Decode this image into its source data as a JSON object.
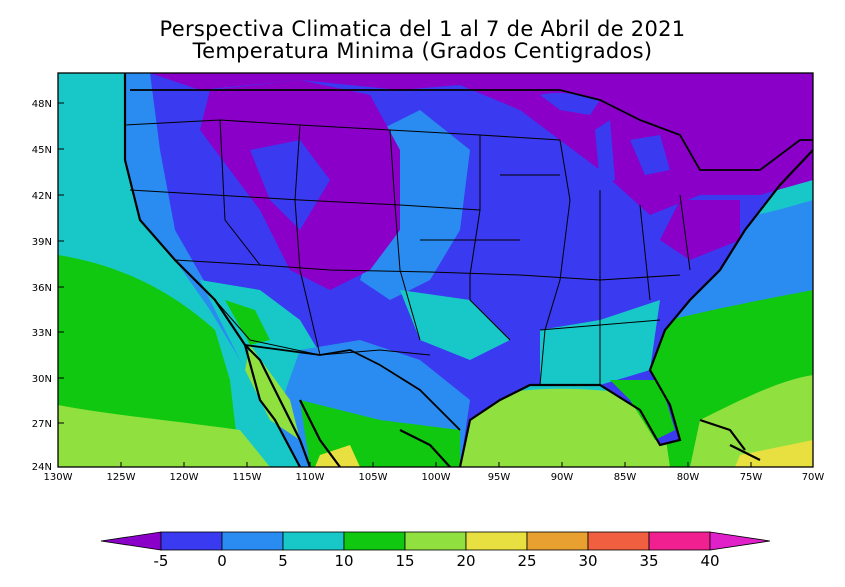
{
  "title_line1": "Perspectiva Climatica del 1 al 7 de Abril de 2021",
  "title_line2": "Temperatura Minima (Grados Centigrados)",
  "lat_labels": [
    "48N",
    "45N",
    "42N",
    "39N",
    "36N",
    "33N",
    "30N",
    "27N",
    "24N"
  ],
  "lon_labels": [
    "130W",
    "125W",
    "120W",
    "115W",
    "110W",
    "105W",
    "100W",
    "95W",
    "90W",
    "85W",
    "80W",
    "75W",
    "70W"
  ],
  "colorbar": {
    "labels": [
      "-5",
      "0",
      "5",
      "10",
      "15",
      "20",
      "25",
      "30",
      "35",
      "40"
    ],
    "colors": [
      "#8a00c8",
      "#3a3af0",
      "#2a8cf0",
      "#18c8c8",
      "#10c810",
      "#90e040",
      "#e8e040",
      "#e8a030",
      "#f06040",
      "#f02090",
      "#e020c8"
    ]
  },
  "colors": {
    "ocean_warm_green": "#10c810",
    "ocean_light_green": "#90e040",
    "cyan": "#18c8c8",
    "light_blue": "#2a8cf0",
    "blue": "#3a3af0",
    "purple": "#8a00c8",
    "yellow": "#e8e040"
  }
}
